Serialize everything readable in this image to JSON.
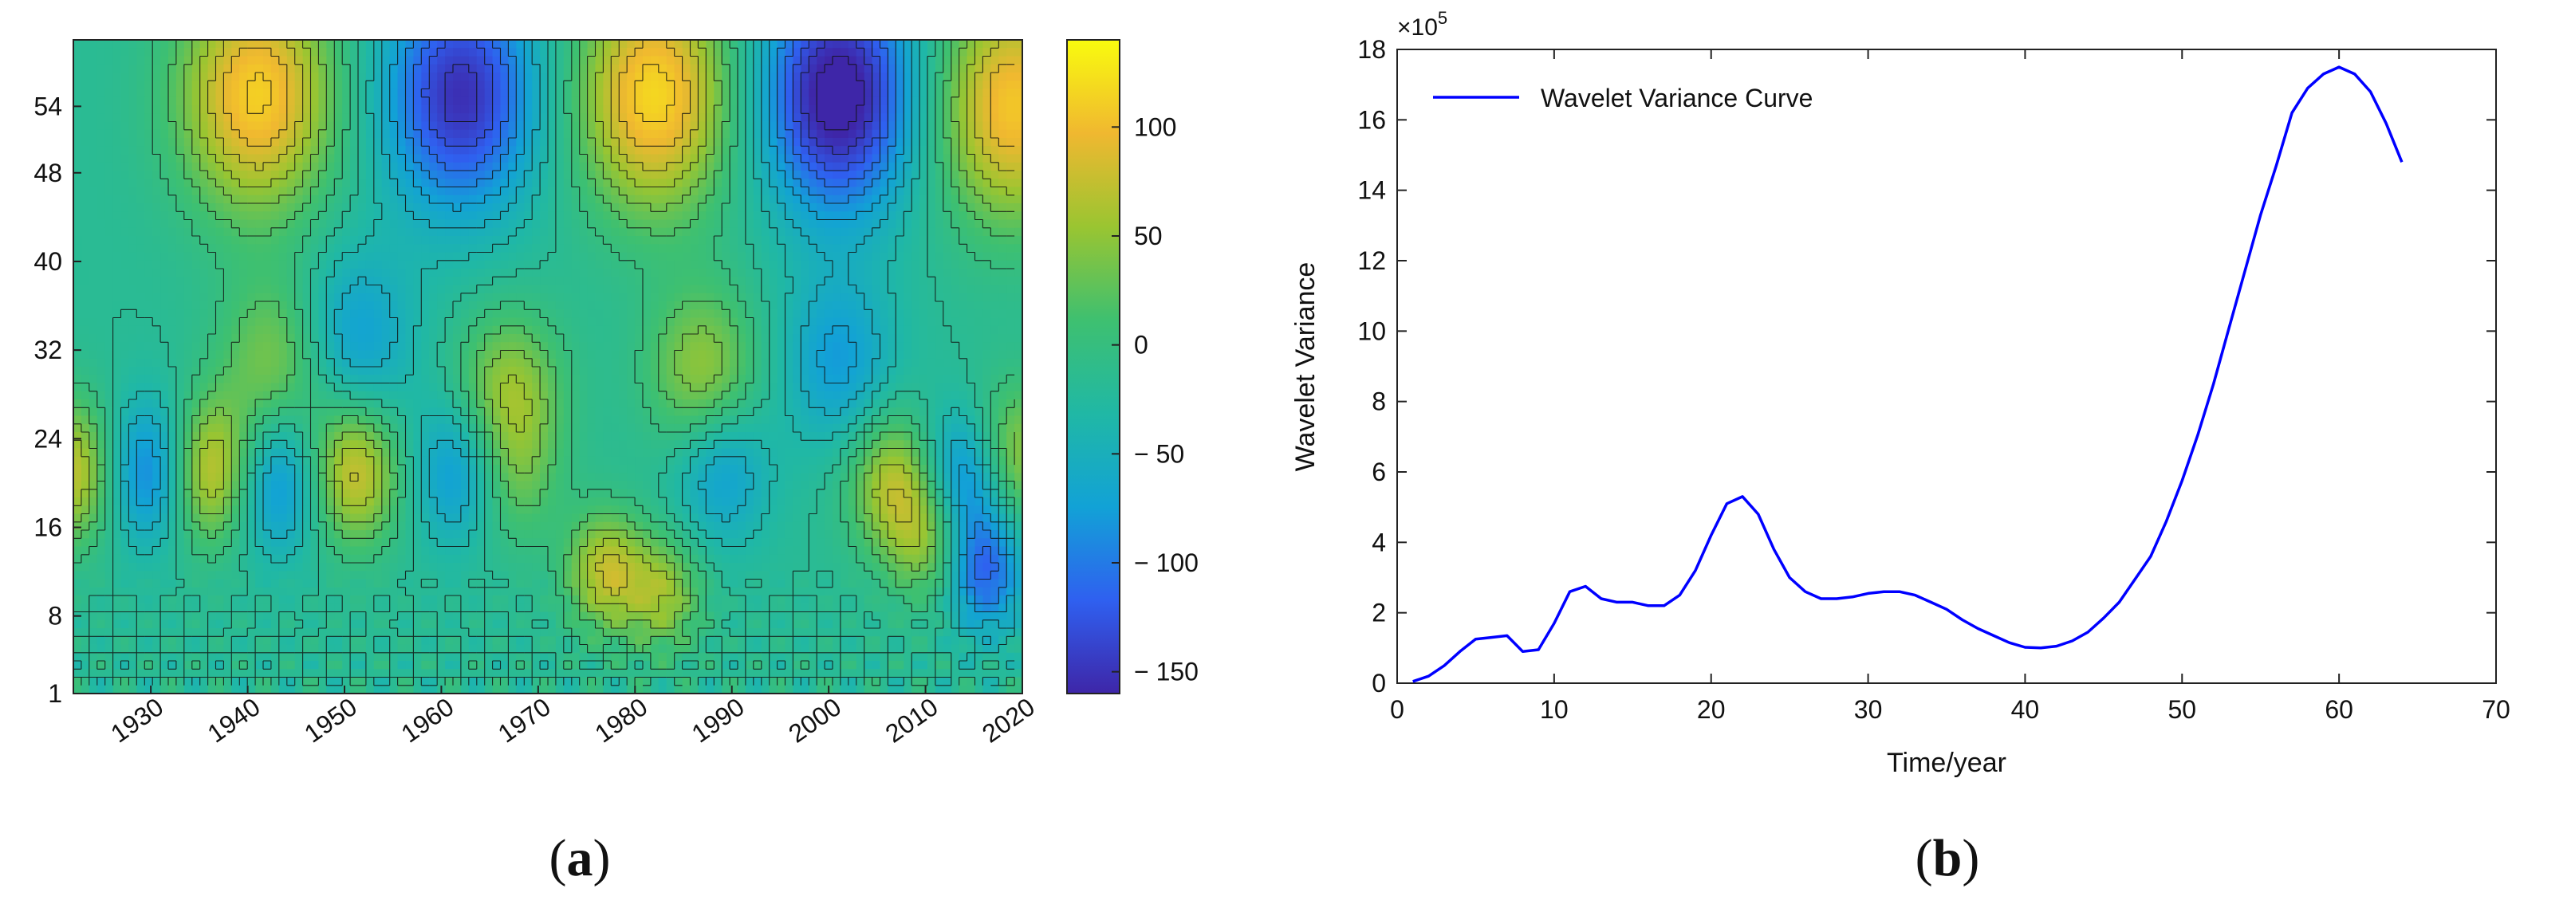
{
  "chart_data": [
    {
      "type": "heatmap",
      "panel_label": "(a)",
      "panel_letter": "a",
      "title": "",
      "xlabel": "",
      "ylabel": "",
      "x_range": [
        1922,
        2020
      ],
      "y_range": [
        1,
        60
      ],
      "x_ticks": [
        1930,
        1940,
        1950,
        1960,
        1970,
        1980,
        1990,
        2000,
        2010,
        2020
      ],
      "y_ticks": [
        1,
        8,
        16,
        24,
        32,
        40,
        48,
        54
      ],
      "colorbar": {
        "range": [
          -160,
          140
        ],
        "ticks": [
          100,
          50,
          0,
          -50,
          -100,
          -150
        ],
        "tick_labels": [
          "100",
          "50",
          "0",
          "− 50",
          "− 100",
          "− 150"
        ],
        "colormap": [
          "#3e26a8",
          "#2f60f0",
          "#12a2d6",
          "#20b8a5",
          "#3ec070",
          "#9ac531",
          "#f0b830",
          "#f9fb0e"
        ]
      },
      "features": [
        {
          "year": 1922,
          "scale": 21,
          "value": 95
        },
        {
          "year": 1930,
          "scale": 21,
          "value": -95
        },
        {
          "year": 1936,
          "scale": 21,
          "value": 110
        },
        {
          "year": 1941,
          "scale": 55,
          "value": 130
        },
        {
          "year": 1943,
          "scale": 31,
          "value": 60
        },
        {
          "year": 1943,
          "scale": 20,
          "value": -80
        },
        {
          "year": 1951,
          "scale": 21,
          "value": 100
        },
        {
          "year": 1951,
          "scale": 33,
          "value": -60
        },
        {
          "year": 1962,
          "scale": 55,
          "value": -135
        },
        {
          "year": 1962,
          "scale": 21,
          "value": -75
        },
        {
          "year": 1967,
          "scale": 28,
          "value": 75
        },
        {
          "year": 1967,
          "scale": 20,
          "value": 45
        },
        {
          "year": 1977,
          "scale": 12,
          "value": 90
        },
        {
          "year": 1982,
          "scale": 55,
          "value": 135
        },
        {
          "year": 1983,
          "scale": 10,
          "value": 70
        },
        {
          "year": 1987,
          "scale": 30,
          "value": 70
        },
        {
          "year": 1989,
          "scale": 21,
          "value": -60
        },
        {
          "year": 2001,
          "scale": 55,
          "value": -160
        },
        {
          "year": 2001,
          "scale": 31,
          "value": -60
        },
        {
          "year": 2007,
          "scale": 20,
          "value": 90
        },
        {
          "year": 2011,
          "scale": 15,
          "value": 75
        },
        {
          "year": 2014,
          "scale": 20,
          "value": -110
        },
        {
          "year": 2016,
          "scale": 12,
          "value": -100
        },
        {
          "year": 2019,
          "scale": 54,
          "value": 125
        },
        {
          "year": 2019,
          "scale": 22,
          "value": 85
        }
      ]
    },
    {
      "type": "line",
      "panel_label": "(b)",
      "panel_letter": "b",
      "title": "",
      "xlabel": "Time/year",
      "ylabel": "Wavelet Variance",
      "y_multiplier_label": "×10",
      "y_multiplier_exponent": "5",
      "xlim": [
        0,
        70
      ],
      "ylim": [
        0,
        18
      ],
      "x_ticks": [
        0,
        10,
        20,
        30,
        40,
        50,
        60,
        70
      ],
      "y_ticks": [
        0,
        2,
        4,
        6,
        8,
        10,
        12,
        14,
        16,
        18
      ],
      "grid": false,
      "legend_position": "top-left",
      "series": [
        {
          "name": "Wavelet Variance Curve",
          "color": "#0000ff",
          "x": [
            1,
            2,
            3,
            4,
            5,
            6,
            7,
            8,
            9,
            10,
            11,
            12,
            13,
            14,
            15,
            16,
            17,
            18,
            19,
            20,
            21,
            22,
            23,
            24,
            25,
            26,
            27,
            28,
            29,
            30,
            31,
            32,
            33,
            34,
            35,
            36,
            37,
            38,
            39,
            40,
            41,
            42,
            43,
            44,
            45,
            46,
            47,
            48,
            49,
            50,
            51,
            52,
            53,
            54,
            55,
            56,
            57,
            58,
            59,
            60,
            61,
            62,
            63,
            64
          ],
          "values": [
            0.05,
            0.2,
            0.5,
            0.9,
            1.25,
            1.3,
            1.35,
            0.9,
            0.95,
            1.7,
            2.6,
            2.75,
            2.4,
            2.3,
            2.3,
            2.2,
            2.2,
            2.5,
            3.2,
            4.2,
            5.1,
            5.3,
            4.8,
            3.8,
            3.0,
            2.6,
            2.4,
            2.4,
            2.45,
            2.55,
            2.6,
            2.6,
            2.5,
            2.3,
            2.1,
            1.8,
            1.55,
            1.35,
            1.15,
            1.02,
            1.0,
            1.05,
            1.2,
            1.45,
            1.85,
            2.3,
            2.95,
            3.6,
            4.6,
            5.75,
            7.05,
            8.5,
            10.1,
            11.7,
            13.3,
            14.7,
            16.2,
            16.9,
            17.3,
            17.5,
            17.3,
            16.8,
            15.9,
            14.8
          ]
        }
      ]
    }
  ]
}
